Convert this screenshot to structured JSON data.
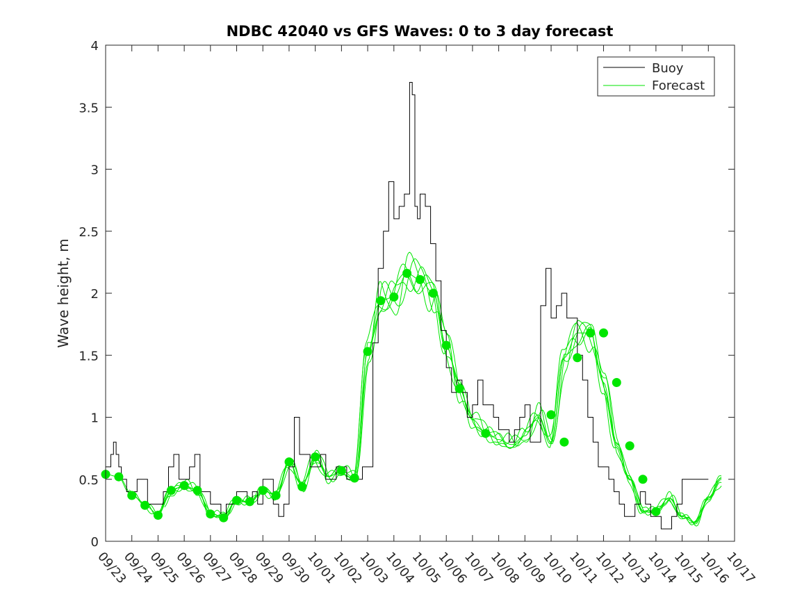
{
  "chart_data": {
    "type": "line",
    "title": "NDBC 42040 vs GFS Waves: 0 to 3 day forecast",
    "xlabel": "",
    "ylabel": "Wave height, m",
    "xlim": [
      0,
      24
    ],
    "ylim": [
      0,
      4
    ],
    "x_ticks": [
      0,
      1,
      2,
      3,
      4,
      5,
      6,
      7,
      8,
      9,
      10,
      11,
      12,
      13,
      14,
      15,
      16,
      17,
      18,
      19,
      20,
      21,
      22,
      23,
      24
    ],
    "x_tick_labels": [
      "09/23",
      "09/24",
      "09/25",
      "09/26",
      "09/27",
      "09/28",
      "09/29",
      "09/30",
      "10/01",
      "10/02",
      "10/03",
      "10/04",
      "10/05",
      "10/06",
      "10/07",
      "10/08",
      "10/09",
      "10/10",
      "10/11",
      "10/12",
      "10/13",
      "10/14",
      "10/15",
      "10/16",
      "10/17"
    ],
    "y_ticks": [
      0,
      0.5,
      1,
      1.5,
      2,
      2.5,
      3,
      3.5,
      4
    ],
    "y_tick_labels": [
      "0",
      "0.5",
      "1",
      "1.5",
      "2",
      "2.5",
      "3",
      "3.5",
      "4"
    ],
    "legend": {
      "position": "top-right",
      "entries": [
        {
          "label": "Buoy",
          "color": "#000000"
        },
        {
          "label": "Forecast",
          "color": "#00e600"
        }
      ]
    },
    "series": [
      {
        "name": "Buoy",
        "color": "#000000",
        "x": [
          0,
          0.2,
          0.3,
          0.4,
          0.5,
          0.6,
          0.7,
          0.8,
          0.9,
          1.0,
          1.2,
          1.4,
          1.6,
          1.8,
          2.0,
          2.2,
          2.4,
          2.6,
          2.8,
          3.0,
          3.2,
          3.4,
          3.6,
          3.8,
          4.0,
          4.2,
          4.4,
          4.6,
          4.8,
          5.0,
          5.2,
          5.4,
          5.6,
          5.8,
          6.0,
          6.2,
          6.4,
          6.6,
          6.8,
          7.0,
          7.2,
          7.4,
          7.6,
          7.8,
          8.0,
          8.2,
          8.4,
          8.6,
          8.8,
          9.0,
          9.2,
          9.4,
          9.6,
          9.8,
          10.0,
          10.2,
          10.4,
          10.6,
          10.8,
          11.0,
          11.2,
          11.4,
          11.6,
          11.7,
          11.8,
          11.9,
          12.0,
          12.2,
          12.4,
          12.6,
          12.8,
          13.0,
          13.2,
          13.4,
          13.6,
          13.8,
          14.0,
          14.2,
          14.4,
          14.6,
          14.8,
          15.0,
          15.2,
          15.4,
          15.6,
          15.8,
          16.0,
          16.2,
          16.4,
          16.6,
          16.8,
          17.0,
          17.2,
          17.4,
          17.6,
          17.8,
          18.0,
          18.2,
          18.4,
          18.6,
          18.8,
          19.0,
          19.2,
          19.4,
          19.6,
          19.8,
          20.0,
          20.2,
          20.4,
          20.6,
          20.8,
          21.0,
          21.2,
          21.4,
          21.6,
          21.8,
          22.0,
          22.2,
          22.4,
          22.6,
          22.8,
          23.0
        ],
        "y": [
          0.6,
          0.7,
          0.8,
          0.7,
          0.6,
          0.5,
          0.5,
          0.4,
          0.4,
          0.4,
          0.5,
          0.5,
          0.3,
          0.3,
          0.3,
          0.4,
          0.6,
          0.7,
          0.5,
          0.5,
          0.6,
          0.7,
          0.4,
          0.4,
          0.3,
          0.3,
          0.2,
          0.3,
          0.3,
          0.4,
          0.4,
          0.3,
          0.4,
          0.3,
          0.5,
          0.5,
          0.3,
          0.2,
          0.3,
          0.6,
          1.0,
          0.7,
          0.7,
          0.6,
          0.6,
          0.7,
          0.5,
          0.5,
          0.6,
          0.6,
          0.5,
          0.5,
          0.5,
          0.6,
          0.6,
          1.6,
          2.2,
          2.5,
          2.9,
          2.6,
          2.7,
          2.8,
          3.7,
          3.6,
          2.7,
          2.6,
          2.8,
          2.7,
          2.4,
          2.1,
          1.7,
          1.4,
          1.2,
          1.3,
          1.2,
          1.0,
          1.1,
          1.3,
          1.1,
          1.1,
          1.0,
          0.9,
          0.9,
          0.8,
          0.9,
          1.0,
          1.1,
          0.8,
          0.8,
          1.9,
          2.2,
          1.8,
          1.9,
          2.0,
          1.8,
          1.8,
          1.5,
          1.3,
          1.0,
          0.8,
          0.6,
          0.6,
          0.5,
          0.4,
          0.3,
          0.2,
          0.2,
          0.3,
          0.4,
          0.3,
          0.2,
          0.2,
          0.1,
          0.1,
          0.2,
          0.3,
          0.5,
          0.5,
          0.5,
          0.5,
          0.5,
          0.5
        ]
      },
      {
        "name": "Forecast",
        "color": "#00e600",
        "x": [
          0,
          0.5,
          1.0,
          1.5,
          2.0,
          2.5,
          3.0,
          3.5,
          4.0,
          4.5,
          5.0,
          5.5,
          6.0,
          6.5,
          7.0,
          7.5,
          8.0,
          8.5,
          9.0,
          9.5,
          10.0,
          10.5,
          11.0,
          11.5,
          12.0,
          12.5,
          13.0,
          13.5,
          14.0,
          14.5,
          15.0,
          15.5,
          16.0,
          16.5,
          17.0,
          17.5,
          18.0,
          18.5,
          19.0,
          19.5,
          20.0,
          20.5,
          21.0,
          21.5,
          22.0,
          22.5,
          23.0,
          23.5
        ],
        "y": [
          0.54,
          0.52,
          0.38,
          0.29,
          0.22,
          0.41,
          0.45,
          0.41,
          0.22,
          0.2,
          0.33,
          0.32,
          0.41,
          0.37,
          0.64,
          0.45,
          0.68,
          0.52,
          0.57,
          0.51,
          1.53,
          1.94,
          1.97,
          2.16,
          2.11,
          2.0,
          1.58,
          1.23,
          0.98,
          0.88,
          0.82,
          0.78,
          0.85,
          1.02,
          0.8,
          1.48,
          1.68,
          1.68,
          1.28,
          0.77,
          0.5,
          0.24,
          0.25,
          0.35,
          0.2,
          0.15,
          0.35,
          0.5
        ]
      },
      {
        "name": "Forecast markers",
        "color": "#00e600",
        "x": [
          0,
          0.5,
          1.0,
          1.5,
          2.0,
          2.5,
          3.0,
          3.5,
          4.0,
          4.5,
          5.0,
          5.5,
          6.0,
          6.5,
          7.0,
          7.5,
          8.0,
          9.0,
          9.5,
          10.0,
          10.5,
          11.0,
          11.5,
          12.0,
          12.5,
          13.0,
          13.5,
          14.5,
          17.0,
          17.5,
          18.0,
          18.5,
          19.0,
          19.5,
          20.0,
          20.5,
          21.0
        ],
        "y": [
          0.54,
          0.52,
          0.37,
          0.29,
          0.21,
          0.41,
          0.45,
          0.41,
          0.22,
          0.19,
          0.33,
          0.32,
          0.41,
          0.37,
          0.64,
          0.44,
          0.68,
          0.57,
          0.51,
          1.53,
          1.94,
          1.97,
          2.16,
          2.11,
          2.0,
          1.58,
          1.23,
          0.87,
          1.02,
          0.8,
          1.48,
          1.68,
          1.68,
          1.28,
          0.77,
          0.5,
          0.24
        ]
      }
    ]
  }
}
